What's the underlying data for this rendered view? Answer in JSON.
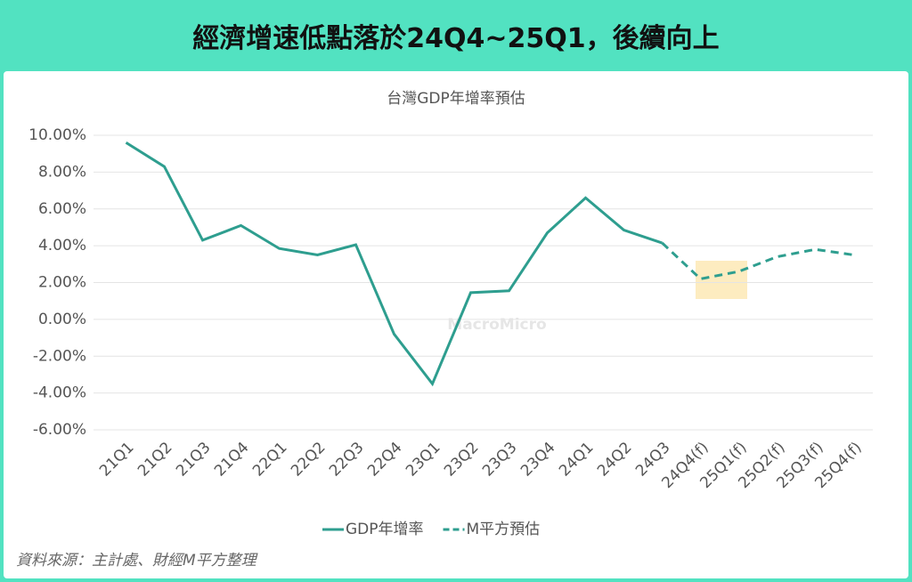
{
  "header": {
    "title": "經濟增速低點落於24Q4~25Q1，後續向上"
  },
  "chart_data": {
    "type": "line",
    "title": "台灣GDP年增率預估",
    "categories": [
      "21Q1",
      "21Q2",
      "21Q3",
      "21Q4",
      "22Q1",
      "22Q2",
      "22Q3",
      "22Q4",
      "23Q1",
      "23Q2",
      "23Q3",
      "23Q4",
      "24Q1",
      "24Q2",
      "24Q3",
      "24Q4(f)",
      "25Q1(f)",
      "25Q2(f)",
      "25Q3(f)",
      "25Q4(f)"
    ],
    "series": [
      {
        "name": "GDP年增率",
        "color": "#2e9e8f",
        "dash": false,
        "values": [
          9.6,
          8.3,
          4.3,
          5.1,
          3.85,
          3.5,
          4.05,
          -0.8,
          -3.5,
          1.45,
          1.55,
          4.7,
          6.6,
          4.85,
          4.15,
          null,
          null,
          null,
          null,
          null
        ]
      },
      {
        "name": "M平方預估",
        "color": "#2e9e8f",
        "dash": true,
        "values": [
          null,
          null,
          null,
          null,
          null,
          null,
          null,
          null,
          null,
          null,
          null,
          null,
          null,
          null,
          4.15,
          2.2,
          2.6,
          3.4,
          3.8,
          3.5
        ]
      }
    ],
    "ylim": [
      -6,
      10
    ],
    "yticks": [
      {
        "value": -6,
        "label": "-6.00%"
      },
      {
        "value": -4,
        "label": "-4.00%"
      },
      {
        "value": -2,
        "label": "-2.00%"
      },
      {
        "value": 0,
        "label": "0.00%"
      },
      {
        "value": 2,
        "label": "2.00%"
      },
      {
        "value": 4,
        "label": "4.00%"
      },
      {
        "value": 6,
        "label": "6.00%"
      },
      {
        "value": 8,
        "label": "8.00%"
      },
      {
        "value": 10,
        "label": "10.00%"
      }
    ],
    "grid": true,
    "legend": "bottom",
    "watermark": "MacroMicro",
    "source": "資料來源：主計處、財經M平方整理"
  }
}
